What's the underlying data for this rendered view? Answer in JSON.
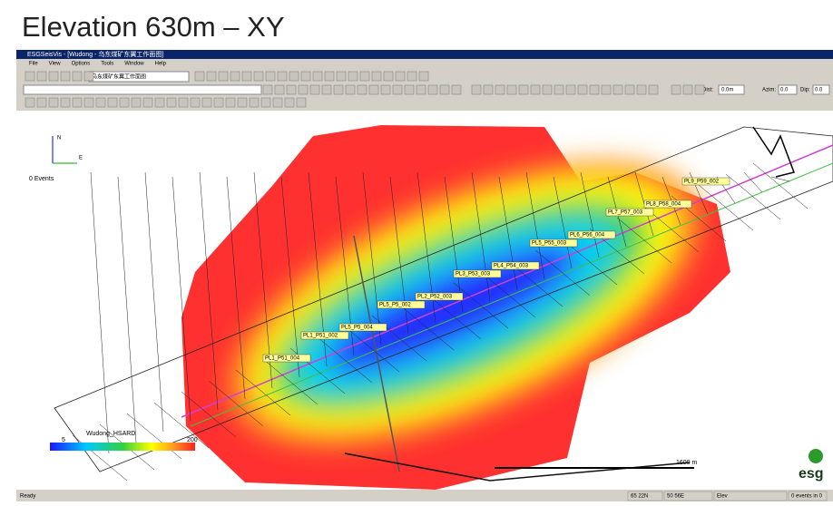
{
  "header": {
    "title": "Elevation 630m – XY"
  },
  "window": {
    "title": "ESGSeisVis - [Wudong - 乌东煤矿东翼工作面图]",
    "menu": [
      "File",
      "View",
      "Options",
      "Tools",
      "Window",
      "Help"
    ],
    "toolbar": {
      "dropdown": "乌东煤矿东翼工作面图",
      "dist": "Dist:",
      "dist_value": "0.0m",
      "azim": "Azim:",
      "azim_value": "0.0",
      "dip": "Dip:",
      "dip_value": "0.0"
    }
  },
  "map": {
    "events": "0 Events",
    "axis_labels": {
      "north": "N",
      "east": "E"
    },
    "stations": [
      "PL1_P51_004",
      "PL1_P51_002",
      "PL5_P5_004",
      "PL5_P5_002",
      "PL2_P52_003",
      "PL3_P53_003",
      "PL4_P54_003",
      "PL5_P55_003",
      "PL6_P56_004",
      "PL7_P57_003",
      "PL8_P58_004",
      "PL9_P59_002"
    ],
    "legend": {
      "name": "Wudong_HSARD",
      "min": 5,
      "max": 200
    },
    "scale": "1600 m",
    "logo": "esg"
  },
  "status": [
    "Ready",
    "65 22N",
    "50 56E",
    "Elev",
    "0 events in 0"
  ]
}
